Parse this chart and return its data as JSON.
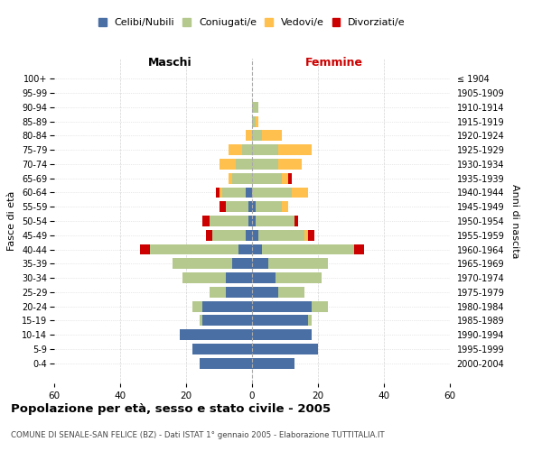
{
  "age_groups": [
    "0-4",
    "5-9",
    "10-14",
    "15-19",
    "20-24",
    "25-29",
    "30-34",
    "35-39",
    "40-44",
    "45-49",
    "50-54",
    "55-59",
    "60-64",
    "65-69",
    "70-74",
    "75-79",
    "80-84",
    "85-89",
    "90-94",
    "95-99",
    "100+"
  ],
  "birth_years": [
    "2000-2004",
    "1995-1999",
    "1990-1994",
    "1985-1989",
    "1980-1984",
    "1975-1979",
    "1970-1974",
    "1965-1969",
    "1960-1964",
    "1955-1959",
    "1950-1954",
    "1945-1949",
    "1940-1944",
    "1935-1939",
    "1930-1934",
    "1925-1929",
    "1920-1924",
    "1915-1919",
    "1910-1914",
    "1905-1909",
    "≤ 1904"
  ],
  "colors": {
    "celibi": "#4a6fa5",
    "coniugati": "#b5c98e",
    "vedovi": "#ffc04d",
    "divorziati": "#cc0000"
  },
  "males": {
    "celibi": [
      16,
      18,
      22,
      15,
      15,
      8,
      8,
      6,
      4,
      2,
      1,
      1,
      2,
      0,
      0,
      0,
      0,
      0,
      0,
      0,
      0
    ],
    "coniugati": [
      0,
      0,
      0,
      1,
      3,
      5,
      13,
      18,
      27,
      10,
      12,
      7,
      7,
      6,
      5,
      3,
      0,
      0,
      0,
      0,
      0
    ],
    "vedovi": [
      0,
      0,
      0,
      0,
      0,
      0,
      0,
      0,
      0,
      0,
      0,
      0,
      1,
      1,
      5,
      4,
      2,
      0,
      0,
      0,
      0
    ],
    "divorziati": [
      0,
      0,
      0,
      0,
      0,
      0,
      0,
      0,
      3,
      2,
      2,
      2,
      1,
      0,
      0,
      0,
      0,
      0,
      0,
      0,
      0
    ]
  },
  "females": {
    "nubili": [
      13,
      20,
      18,
      17,
      18,
      8,
      7,
      5,
      3,
      2,
      1,
      1,
      0,
      0,
      0,
      0,
      0,
      0,
      0,
      0,
      0
    ],
    "coniugate": [
      0,
      0,
      0,
      1,
      5,
      8,
      14,
      18,
      28,
      14,
      12,
      8,
      12,
      9,
      8,
      8,
      3,
      1,
      2,
      0,
      0
    ],
    "vedove": [
      0,
      0,
      0,
      0,
      0,
      0,
      0,
      0,
      0,
      1,
      0,
      2,
      5,
      2,
      7,
      10,
      6,
      1,
      0,
      0,
      0
    ],
    "divorziate": [
      0,
      0,
      0,
      0,
      0,
      0,
      0,
      0,
      3,
      2,
      1,
      0,
      0,
      1,
      0,
      0,
      0,
      0,
      0,
      0,
      0
    ]
  },
  "xlim": 60,
  "title": "Popolazione per età, sesso e stato civile - 2005",
  "subtitle": "COMUNE DI SENALE-SAN FELICE (BZ) - Dati ISTAT 1° gennaio 2005 - Elaborazione TUTTITALIA.IT",
  "ylabel_left": "Fasce di età",
  "ylabel_right": "Anni di nascita"
}
